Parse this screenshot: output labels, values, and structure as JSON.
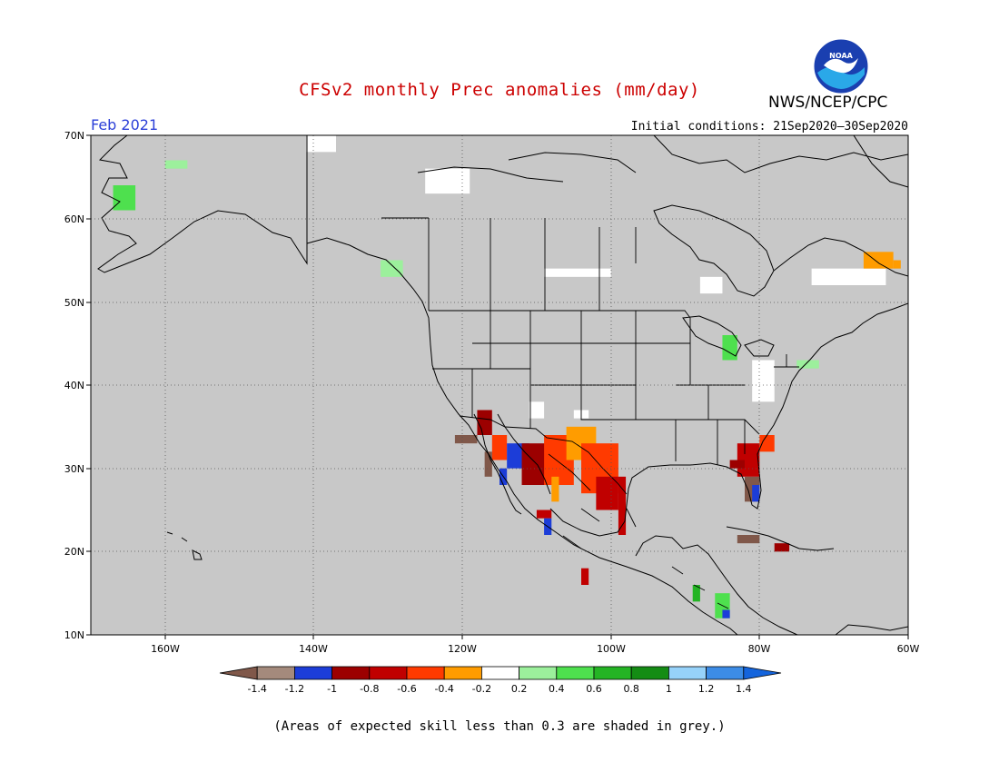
{
  "title": "CFSv2 monthly Prec anomalies (mm/day)",
  "agency": "NWS/NCEP/CPC",
  "logo_text": "NOAA",
  "month": "Feb 2021",
  "initial_conditions": "Initial conditions: 21Sep2020–30Sep2020",
  "axes": {
    "x_ticks": [
      "160W",
      "140W",
      "120W",
      "100W",
      "80W",
      "60W"
    ],
    "y_ticks": [
      "70N",
      "60N",
      "50N",
      "40N",
      "30N",
      "20N",
      "10N"
    ],
    "lon_range": [
      -170,
      -60
    ],
    "lat_range": [
      10,
      70
    ],
    "grid": "dotted"
  },
  "colorbar": {
    "labels": [
      "-1.4",
      "-1.2",
      "-1",
      "-0.8",
      "-0.6",
      "-0.4",
      "-0.2",
      "0.2",
      "0.4",
      "0.6",
      "0.8",
      "1",
      "1.2",
      "1.4"
    ],
    "colors": [
      "#80584a",
      "#a48a7c",
      "#1c3dd8",
      "#9c0000",
      "#c00000",
      "#ff3a00",
      "#ff9c00",
      "#ffffff",
      "#9cf09c",
      "#4ee04e",
      "#24b424",
      "#148c14",
      "#96d2fa",
      "#3c8ce6",
      "#1464dc"
    ]
  },
  "footnote": "(Areas of expected skill less than 0.3 are shaded in grey.)",
  "colors": {
    "land_sea_masked": "#c8c8c8",
    "title": "#cc0000",
    "month": "#2b3fd8"
  },
  "anomaly_patches": [
    {
      "lon": -118,
      "lat": 34,
      "w": 2,
      "h": 3,
      "c": "#9c0000"
    },
    {
      "lon": -116,
      "lat": 31,
      "w": 2,
      "h": 3,
      "c": "#ff3a00"
    },
    {
      "lon": -121,
      "lat": 33,
      "w": 3,
      "h": 1,
      "c": "#80584a"
    },
    {
      "lon": -114,
      "lat": 30,
      "w": 3,
      "h": 3,
      "c": "#1c3dd8"
    },
    {
      "lon": -112,
      "lat": 28,
      "w": 4,
      "h": 5,
      "c": "#9c0000"
    },
    {
      "lon": -109,
      "lat": 28,
      "w": 4,
      "h": 6,
      "c": "#ff3a00"
    },
    {
      "lon": -106,
      "lat": 31,
      "w": 4,
      "h": 4,
      "c": "#ff9c00"
    },
    {
      "lon": -104,
      "lat": 27,
      "w": 5,
      "h": 6,
      "c": "#ff3a00"
    },
    {
      "lon": -102,
      "lat": 25,
      "w": 3,
      "h": 4,
      "c": "#c00000"
    },
    {
      "lon": -99,
      "lat": 22,
      "w": 1,
      "h": 7,
      "c": "#c00000"
    },
    {
      "lon": -108,
      "lat": 26,
      "w": 1,
      "h": 3,
      "c": "#ff9c00"
    },
    {
      "lon": -110,
      "lat": 24,
      "w": 2,
      "h": 1,
      "c": "#c00000"
    },
    {
      "lon": -109,
      "lat": 22,
      "w": 1,
      "h": 2,
      "c": "#1c3dd8"
    },
    {
      "lon": -115,
      "lat": 28,
      "w": 1,
      "h": 2,
      "c": "#1c3dd8"
    },
    {
      "lon": -117,
      "lat": 29,
      "w": 1,
      "h": 3,
      "c": "#80584a"
    },
    {
      "lon": -104,
      "lat": 16,
      "w": 1,
      "h": 2,
      "c": "#c00000"
    },
    {
      "lon": -83,
      "lat": 29,
      "w": 3,
      "h": 4,
      "c": "#c00000"
    },
    {
      "lon": -82,
      "lat": 26,
      "w": 2,
      "h": 3,
      "c": "#80584a"
    },
    {
      "lon": -81,
      "lat": 26,
      "w": 1,
      "h": 2,
      "c": "#1c3dd8"
    },
    {
      "lon": -80,
      "lat": 32,
      "w": 2,
      "h": 2,
      "c": "#ff3a00"
    },
    {
      "lon": -83,
      "lat": 21,
      "w": 3,
      "h": 1,
      "c": "#80584a"
    },
    {
      "lon": -78,
      "lat": 20,
      "w": 2,
      "h": 1,
      "c": "#9c0000"
    },
    {
      "lon": -84,
      "lat": 30,
      "w": 2,
      "h": 1,
      "c": "#9c0000"
    },
    {
      "lon": -105,
      "lat": 36,
      "w": 2,
      "h": 1,
      "c": "#ffffff"
    },
    {
      "lon": -111,
      "lat": 36,
      "w": 2,
      "h": 2,
      "c": "#ffffff"
    },
    {
      "lon": -125,
      "lat": 63,
      "w": 6,
      "h": 3,
      "c": "#ffffff"
    },
    {
      "lon": -141,
      "lat": 68,
      "w": 4,
      "h": 2,
      "c": "#ffffff"
    },
    {
      "lon": -109,
      "lat": 53,
      "w": 9,
      "h": 1,
      "c": "#ffffff"
    },
    {
      "lon": -73,
      "lat": 52,
      "w": 10,
      "h": 2,
      "c": "#ffffff"
    },
    {
      "lon": -88,
      "lat": 51,
      "w": 3,
      "h": 2,
      "c": "#ffffff"
    },
    {
      "lon": -81,
      "lat": 38,
      "w": 3,
      "h": 5,
      "c": "#ffffff"
    },
    {
      "lon": -66,
      "lat": 54,
      "w": 4,
      "h": 2,
      "c": "#ff9c00"
    },
    {
      "lon": -62,
      "lat": 54,
      "w": 1,
      "h": 1,
      "c": "#ff9c00"
    },
    {
      "lon": -167,
      "lat": 61,
      "w": 3,
      "h": 3,
      "c": "#4ee04e"
    },
    {
      "lon": -160,
      "lat": 66,
      "w": 3,
      "h": 1,
      "c": "#9cf09c"
    },
    {
      "lon": -131,
      "lat": 53,
      "w": 3,
      "h": 2,
      "c": "#9cf09c"
    },
    {
      "lon": -85,
      "lat": 43,
      "w": 2,
      "h": 3,
      "c": "#4ee04e"
    },
    {
      "lon": -75,
      "lat": 42,
      "w": 3,
      "h": 1,
      "c": "#9cf09c"
    },
    {
      "lon": -89,
      "lat": 14,
      "w": 1,
      "h": 2,
      "c": "#24b424"
    },
    {
      "lon": -86,
      "lat": 12,
      "w": 2,
      "h": 3,
      "c": "#4ee04e"
    },
    {
      "lon": -85,
      "lat": 12,
      "w": 1,
      "h": 1,
      "c": "#1c3dd8"
    }
  ]
}
